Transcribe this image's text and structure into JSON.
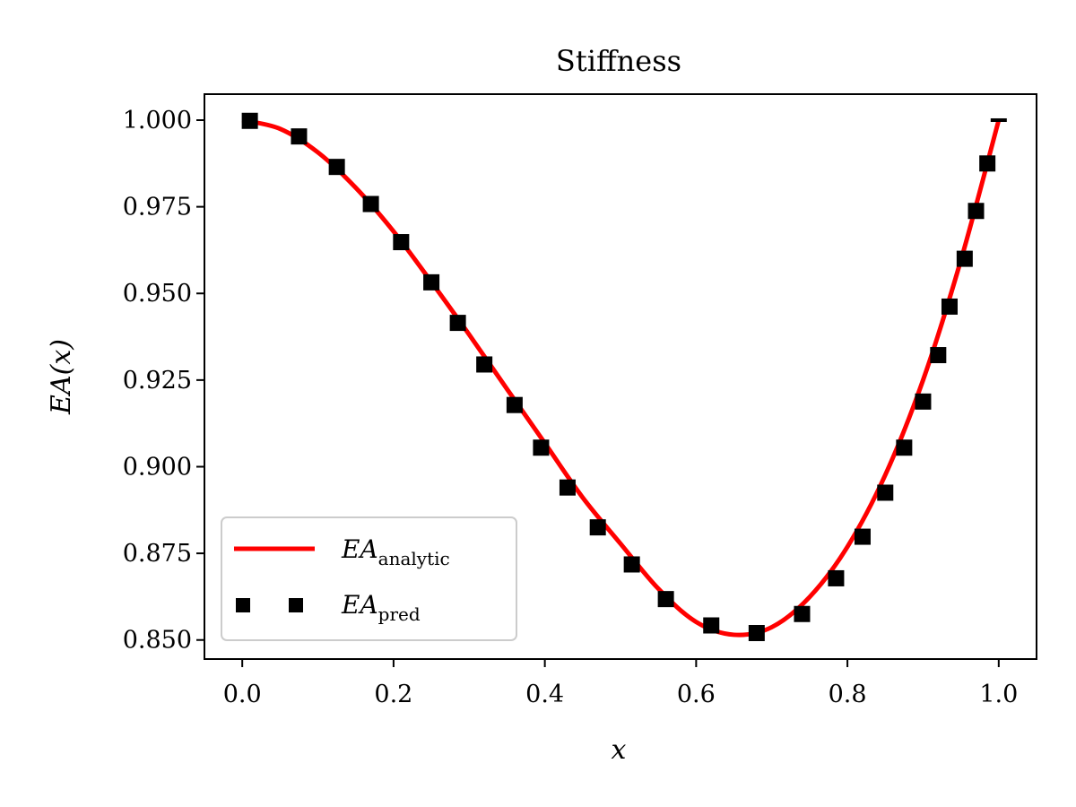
{
  "chart_data": {
    "type": "line",
    "title": "Stiffness",
    "xlabel": "x",
    "ylabel": "EA(x)",
    "xlim": [
      -0.05,
      1.05
    ],
    "ylim": [
      0.8445,
      1.0075
    ],
    "xticks": [
      0.0,
      0.2,
      0.4,
      0.6,
      0.8,
      1.0
    ],
    "xtick_labels": [
      "0.0",
      "0.2",
      "0.4",
      "0.6",
      "0.8",
      "1.0"
    ],
    "yticks": [
      0.85,
      0.875,
      0.9,
      0.925,
      0.95,
      0.975,
      1.0
    ],
    "ytick_labels": [
      "0.850",
      "0.875",
      "0.900",
      "0.925",
      "0.950",
      "0.975",
      "1.000"
    ],
    "grid": false,
    "legend_position": "lower-left",
    "series": [
      {
        "name": "EA_analytic",
        "legend_main": "EA",
        "legend_sub": "analytic",
        "style": "line",
        "color": "#ff0000",
        "x": [
          0.0,
          0.05,
          0.1,
          0.15,
          0.2,
          0.25,
          0.3,
          0.35,
          0.4,
          0.45,
          0.5,
          0.55,
          0.6,
          0.65,
          0.7,
          0.75,
          0.8,
          0.85,
          0.9,
          0.95,
          1.0
        ],
        "y": [
          1.0,
          0.9975,
          0.9907,
          0.9805,
          0.9679,
          0.9533,
          0.9381,
          0.9224,
          0.9068,
          0.8911,
          0.8778,
          0.8648,
          0.8552,
          0.8515,
          0.8537,
          0.8624,
          0.8769,
          0.8976,
          0.925,
          0.9596,
          1.0
        ]
      },
      {
        "name": "EA_pred",
        "legend_main": "EA",
        "legend_sub": "pred",
        "style": "square-markers",
        "color": "#000000",
        "x": [
          0.01,
          0.075,
          0.125,
          0.17,
          0.21,
          0.25,
          0.285,
          0.32,
          0.36,
          0.395,
          0.43,
          0.47,
          0.515,
          0.56,
          0.62,
          0.68,
          0.74,
          0.785,
          0.82,
          0.85,
          0.875,
          0.9,
          0.92,
          0.935,
          0.955,
          0.97,
          0.985,
          1.0
        ],
        "y": [
          0.9998,
          0.9953,
          0.9865,
          0.9758,
          0.9648,
          0.9532,
          0.9415,
          0.9295,
          0.9178,
          0.9055,
          0.894,
          0.8825,
          0.8718,
          0.8618,
          0.8542,
          0.852,
          0.8575,
          0.8678,
          0.8798,
          0.8925,
          0.9055,
          0.9188,
          0.9322,
          0.9462,
          0.96,
          0.9738,
          0.9875,
          1.0
        ]
      }
    ]
  }
}
